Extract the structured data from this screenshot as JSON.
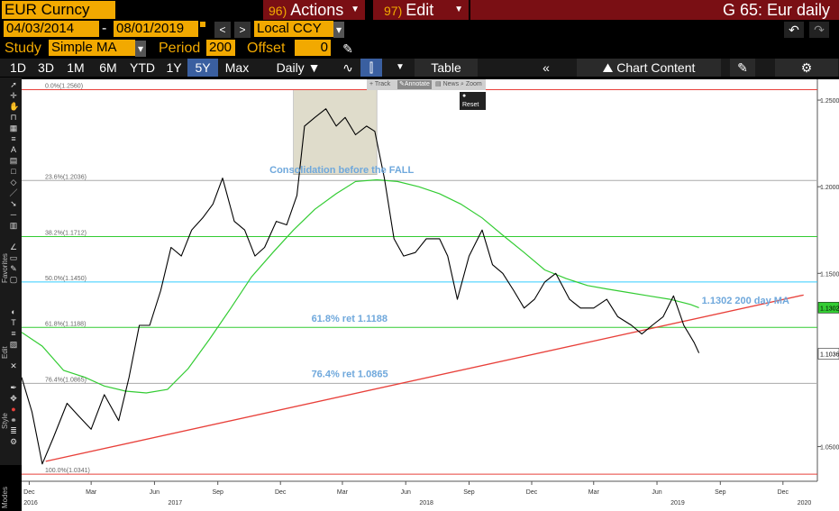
{
  "header": {
    "ticker": "EUR Curncy",
    "actions_num": "96)",
    "actions_label": "Actions",
    "edit_num": "97)",
    "edit_label": "Edit",
    "title": "G 65: Eur daily"
  },
  "toolbar": {
    "start_date": "04/03/2014",
    "date_sep": "-",
    "end_date": "08/01/2019",
    "prev_glyph": "<",
    "next_glyph": ">",
    "currency": "Local CCY",
    "study_label": "Study",
    "study_value": "Simple MA",
    "period_label": "Period",
    "period_value": "200",
    "offset_label": "Offset",
    "offset_value": "0"
  },
  "tabs": {
    "ranges": [
      "1D",
      "3D",
      "1M",
      "6M",
      "YTD",
      "1Y",
      "5Y",
      "Max"
    ],
    "active_range": "5Y",
    "frequency": "Daily",
    "table": "Table",
    "chart_content": "Chart Content"
  },
  "mini_toolbar": {
    "track": "Track",
    "annotate": "Annotate",
    "news": "News",
    "zoom": "Zoom",
    "reset": "Reset"
  },
  "sidebar": {
    "favorites": "Favorites",
    "edit": "Edit",
    "style": "Style",
    "modes": "Modes"
  },
  "colors": {
    "background": "#000000",
    "plot_bg": "#ffffff",
    "price": "#000000",
    "ma": "#33cc33",
    "trendline": "#e8403a",
    "fib_0": "#e8403a",
    "fib_23": "#aaaaaa",
    "fib_38": "#33cc33",
    "fib_50": "#33ccff",
    "fib_61": "#33cc33",
    "fib_76": "#aaaaaa",
    "fib_100": "#e8403a",
    "annotation": "#6fa8dc",
    "accent": "#f2a900",
    "menu_bg": "#7a0f14",
    "active_tab": "#3a5fa0"
  },
  "chart_data": {
    "type": "line",
    "series": [
      {
        "type": "line",
        "x": [
          "2016-11-20",
          "2016-12-05",
          "2016-12-20",
          "2017-01-05",
          "2017-01-25",
          "2017-02-10",
          "2017-03-01",
          "2017-03-20",
          "2017-04-10",
          "2017-04-25",
          "2017-05-10",
          "2017-05-25",
          "2017-06-10",
          "2017-06-25",
          "2017-07-10",
          "2017-07-25",
          "2017-08-10",
          "2017-08-25",
          "2017-09-08",
          "2017-09-25",
          "2017-10-10",
          "2017-10-25",
          "2017-11-08",
          "2017-11-25",
          "2017-12-10",
          "2017-12-25",
          "2018-01-05",
          "2018-01-20",
          "2018-02-05",
          "2018-02-20",
          "2018-03-05",
          "2018-03-20",
          "2018-04-05",
          "2018-04-17",
          "2018-05-01",
          "2018-05-15",
          "2018-05-29",
          "2018-06-15",
          "2018-07-01",
          "2018-07-20",
          "2018-08-01",
          "2018-08-15",
          "2018-09-01",
          "2018-09-20",
          "2018-10-05",
          "2018-10-20",
          "2018-11-05",
          "2018-11-20",
          "2018-12-05",
          "2018-12-20",
          "2019-01-05",
          "2019-01-25",
          "2019-02-10",
          "2019-03-01",
          "2019-03-20",
          "2019-04-05",
          "2019-04-25",
          "2019-05-10",
          "2019-05-25",
          "2019-06-10",
          "2019-06-25",
          "2019-07-10",
          "2019-07-25",
          "2019-08-01"
        ],
        "y": [
          1.09,
          1.07,
          1.04,
          1.055,
          1.075,
          1.068,
          1.06,
          1.08,
          1.065,
          1.09,
          1.12,
          1.12,
          1.14,
          1.165,
          1.16,
          1.175,
          1.182,
          1.19,
          1.205,
          1.18,
          1.175,
          1.16,
          1.165,
          1.18,
          1.178,
          1.195,
          1.235,
          1.24,
          1.245,
          1.235,
          1.24,
          1.23,
          1.235,
          1.232,
          1.205,
          1.17,
          1.16,
          1.162,
          1.17,
          1.17,
          1.16,
          1.135,
          1.16,
          1.175,
          1.155,
          1.15,
          1.14,
          1.13,
          1.135,
          1.145,
          1.15,
          1.135,
          1.13,
          1.13,
          1.135,
          1.125,
          1.12,
          1.115,
          1.12,
          1.125,
          1.137,
          1.12,
          1.11,
          1.104
        ],
        "name": ""
      },
      {
        "type": "line",
        "x": [
          "2016-11-20",
          "2016-12-20",
          "2017-01-20",
          "2017-02-20",
          "2017-03-20",
          "2017-04-20",
          "2017-05-20",
          "2017-06-20",
          "2017-07-20",
          "2017-08-20",
          "2017-09-20",
          "2017-10-20",
          "2017-11-20",
          "2017-12-20",
          "2018-01-20",
          "2018-02-20",
          "2018-03-20",
          "2018-04-20",
          "2018-05-20",
          "2018-06-20",
          "2018-07-20",
          "2018-08-20",
          "2018-09-20",
          "2018-10-20",
          "2018-11-20",
          "2018-12-20",
          "2019-01-20",
          "2019-02-20",
          "2019-03-20",
          "2019-04-20",
          "2019-05-20",
          "2019-06-20",
          "2019-07-20",
          "2019-08-01"
        ],
        "y": [
          1.116,
          1.108,
          1.094,
          1.09,
          1.085,
          1.082,
          1.081,
          1.083,
          1.095,
          1.112,
          1.13,
          1.148,
          1.162,
          1.175,
          1.187,
          1.196,
          1.203,
          1.204,
          1.203,
          1.2,
          1.196,
          1.19,
          1.182,
          1.172,
          1.162,
          1.152,
          1.147,
          1.143,
          1.141,
          1.139,
          1.137,
          1.135,
          1.132,
          1.1302
        ],
        "name": "200 day MA"
      }
    ],
    "trendline": {
      "x": [
        "2016-12-25",
        "2019-12-31"
      ],
      "y": [
        1.0415,
        1.1375
      ]
    },
    "fib_levels": [
      {
        "ratio": "0.0%",
        "label": "(1.2560)",
        "value": 1.256,
        "color": "#e8403a"
      },
      {
        "ratio": "23.6%",
        "label": "(1.2036)",
        "value": 1.2036,
        "color": "#aaaaaa"
      },
      {
        "ratio": "38.2%",
        "label": "(1.1712)",
        "value": 1.1712,
        "color": "#33cc33"
      },
      {
        "ratio": "50.0%",
        "label": "(1.1450)",
        "value": 1.145,
        "color": "#33ccff"
      },
      {
        "ratio": "61.8%",
        "label": "(1.1188)",
        "value": 1.1188,
        "color": "#33cc33"
      },
      {
        "ratio": "76.4%",
        "label": "(1.0865)",
        "value": 1.0865,
        "color": "#aaaaaa"
      },
      {
        "ratio": "100.0%",
        "label": "(1.0341)",
        "value": 1.0341,
        "color": "#e8403a"
      }
    ],
    "annotations": [
      {
        "text": "Consolidation before the FALL",
        "x": "2018-02-28",
        "y": 1.208
      },
      {
        "text": "61.8% ret 1.1188",
        "x": "2018-01-15",
        "y": 1.122
      },
      {
        "text": "76.4% ret 1.0865",
        "x": "2018-01-15",
        "y": 1.09
      },
      {
        "text": "1.1302 200 day MA",
        "x": "2019-08-05",
        "y": 1.1325
      }
    ],
    "consolidation_box": {
      "x": [
        "2017-12-20",
        "2018-04-20"
      ],
      "y": [
        1.207,
        1.256
      ]
    },
    "y_ticks": [
      "1.2500",
      "1.2000",
      "1.1500",
      "1.0500"
    ],
    "y_tick_values": [
      1.25,
      1.2,
      1.15,
      1.05
    ],
    "price_badges": [
      {
        "label": "1.1302",
        "value": 1.1302,
        "color": "#33cc33"
      },
      {
        "label": "1.1036",
        "value": 1.1036,
        "color": "#ffffff"
      }
    ],
    "x_months": [
      {
        "label": "Dec",
        "date": "2016-12-01"
      },
      {
        "label": "Mar",
        "date": "2017-03-01"
      },
      {
        "label": "Jun",
        "date": "2017-06-01"
      },
      {
        "label": "Sep",
        "date": "2017-09-01"
      },
      {
        "label": "Dec",
        "date": "2017-12-01"
      },
      {
        "label": "Mar",
        "date": "2018-03-01"
      },
      {
        "label": "Jun",
        "date": "2018-06-01"
      },
      {
        "label": "Sep",
        "date": "2018-09-01"
      },
      {
        "label": "Dec",
        "date": "2018-12-01"
      },
      {
        "label": "Mar",
        "date": "2019-03-01"
      },
      {
        "label": "Jun",
        "date": "2019-06-01"
      },
      {
        "label": "Sep",
        "date": "2019-09-01"
      },
      {
        "label": "Dec",
        "date": "2019-12-01"
      }
    ],
    "x_years": [
      {
        "label": "2016",
        "date": "2016-11-20"
      },
      {
        "label": "2017",
        "date": "2017-07-01"
      },
      {
        "label": "2018",
        "date": "2018-07-01"
      },
      {
        "label": "2019",
        "date": "2019-07-01"
      },
      {
        "label": "2020",
        "date": "2020-01-01"
      }
    ],
    "xlim": [
      "2016-11-20",
      "2020-01-20"
    ],
    "ylim": [
      1.03,
      1.262
    ],
    "grid": false,
    "legend": "none"
  }
}
